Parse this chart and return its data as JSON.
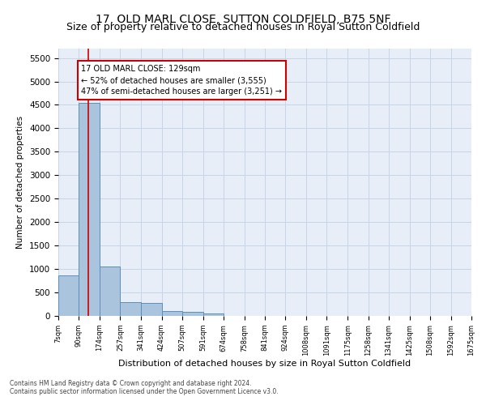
{
  "title": "17, OLD MARL CLOSE, SUTTON COLDFIELD, B75 5NF",
  "subtitle": "Size of property relative to detached houses in Royal Sutton Coldfield",
  "xlabel": "Distribution of detached houses by size in Royal Sutton Coldfield",
  "ylabel": "Number of detached properties",
  "footer1": "Contains HM Land Registry data © Crown copyright and database right 2024.",
  "footer2": "Contains public sector information licensed under the Open Government Licence v3.0.",
  "bin_edges": [
    7,
    90,
    174,
    257,
    341,
    424,
    507,
    591,
    674,
    758,
    841,
    924,
    1008,
    1091,
    1175,
    1258,
    1341,
    1425,
    1508,
    1592,
    1675
  ],
  "bin_labels": [
    "7sqm",
    "90sqm",
    "174sqm",
    "257sqm",
    "341sqm",
    "424sqm",
    "507sqm",
    "591sqm",
    "674sqm",
    "758sqm",
    "841sqm",
    "924sqm",
    "1008sqm",
    "1091sqm",
    "1175sqm",
    "1258sqm",
    "1341sqm",
    "1425sqm",
    "1508sqm",
    "1592sqm",
    "1675sqm"
  ],
  "bar_values": [
    870,
    4550,
    1060,
    290,
    285,
    100,
    90,
    55,
    0,
    0,
    0,
    0,
    0,
    0,
    0,
    0,
    0,
    0,
    0,
    0
  ],
  "bar_color": "#aac4de",
  "bar_edge_color": "#5a8fc0",
  "property_size": 129,
  "red_line_color": "#cc0000",
  "annotation_line1": "17 OLD MARL CLOSE: 129sqm",
  "annotation_line2": "← 52% of detached houses are smaller (3,555)",
  "annotation_line3": "47% of semi-detached houses are larger (3,251) →",
  "annotation_box_color": "#ffffff",
  "annotation_box_edge": "#cc0000",
  "ylim": [
    0,
    5700
  ],
  "yticks": [
    0,
    500,
    1000,
    1500,
    2000,
    2500,
    3000,
    3500,
    4000,
    4500,
    5000,
    5500
  ],
  "grid_color": "#c8d4e8",
  "bg_color": "#e8eef7",
  "title_fontsize": 10,
  "subtitle_fontsize": 9
}
